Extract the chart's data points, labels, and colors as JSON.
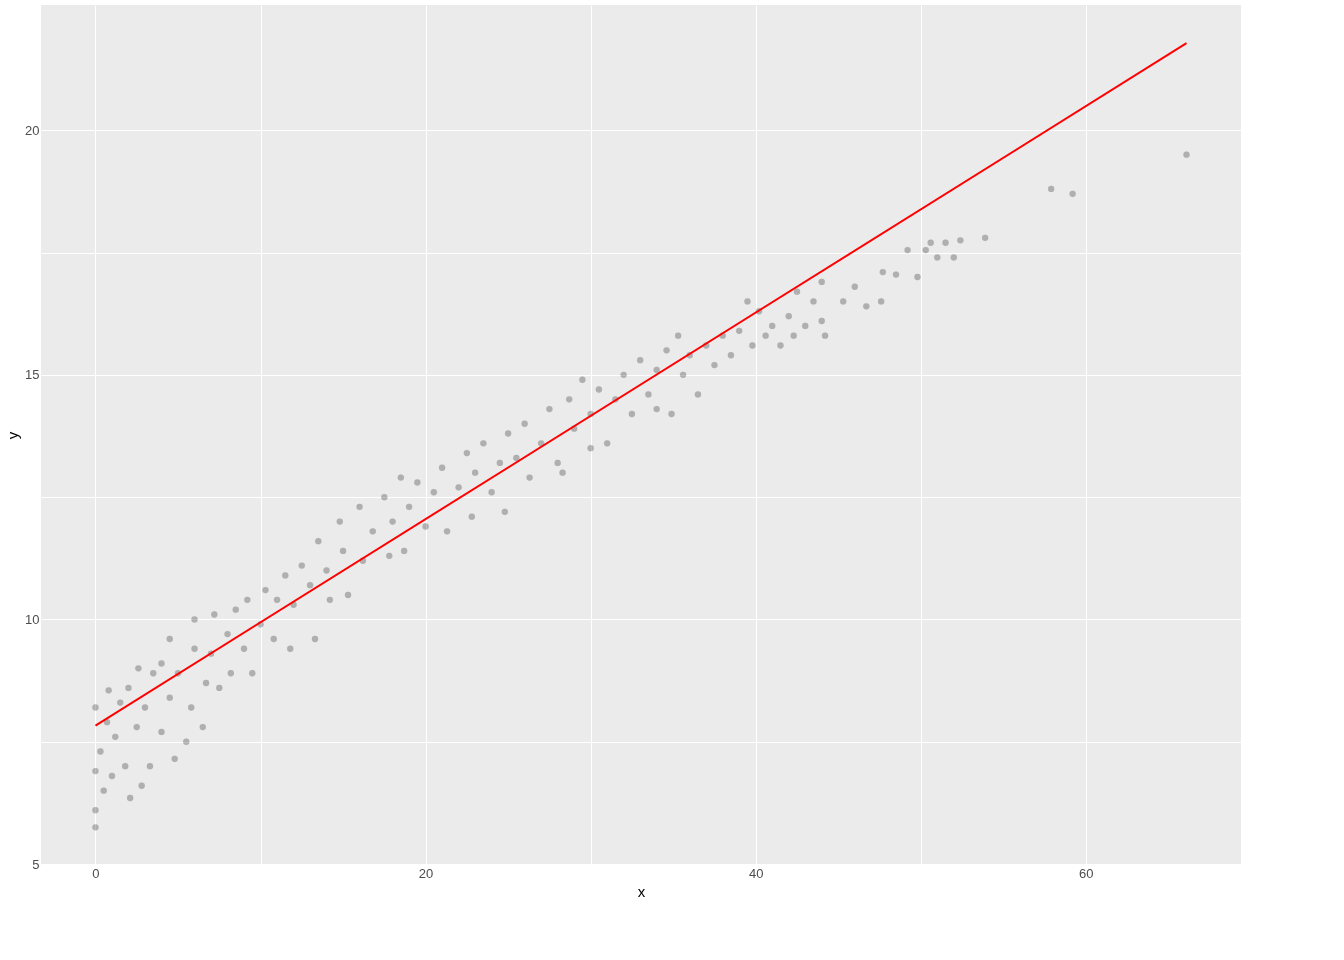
{
  "chart_data": {
    "type": "scatter",
    "xlabel": "x",
    "ylabel": "y",
    "xlim": [
      -3.3,
      69.4
    ],
    "ylim": [
      4.98,
      22.56
    ],
    "xticks": [
      0,
      {
        "value": 10,
        "label": null
      },
      20,
      {
        "value": 30,
        "label": null
      },
      40,
      {
        "value": 50,
        "label": null
      },
      60
    ],
    "yticks": [
      5,
      {
        "value": 7.5,
        "label": null
      },
      10,
      {
        "value": 12.5,
        "label": null
      },
      15,
      {
        "value": 17.5,
        "label": null
      },
      20
    ],
    "grid": true,
    "series": [
      {
        "type": "scatter",
        "color": "#000000",
        "marker": "circle",
        "x": [
          0,
          0,
          0,
          0,
          0.3,
          0.5,
          0.7,
          0.8,
          1,
          1.2,
          1.5,
          1.8,
          2,
          2.1,
          2.5,
          2.6,
          2.8,
          3,
          3.3,
          3.5,
          4,
          4,
          4.5,
          4.8,
          4.5,
          5,
          5.5,
          5.8,
          6,
          6,
          6.5,
          6.7,
          7,
          7.2,
          7.5,
          8,
          8.2,
          8.5,
          9,
          9.2,
          9.5,
          10,
          10.3,
          10.8,
          11,
          11.5,
          11.8,
          12,
          12.5,
          13,
          13.3,
          13.5,
          14,
          14.2,
          14.8,
          15,
          15.3,
          16,
          16.2,
          16.8,
          17.5,
          17.8,
          18,
          18.5,
          18.7,
          19,
          19.5,
          20,
          20.5,
          21,
          21.3,
          22,
          22.5,
          22.8,
          23,
          23.5,
          24,
          24.5,
          24.8,
          25,
          25.5,
          26,
          26.3,
          27,
          27.5,
          28,
          28.3,
          28.7,
          29,
          29.5,
          30,
          30,
          30.5,
          31,
          31.5,
          32,
          32.5,
          33,
          33.5,
          34,
          34,
          34.6,
          34.9,
          35.3,
          35.6,
          36,
          36.5,
          37,
          37.5,
          38,
          38.5,
          39,
          39.5,
          39.8,
          40.2,
          40.6,
          41,
          41.5,
          42,
          42.3,
          42.5,
          43,
          43.5,
          44,
          44.2,
          44,
          45.3,
          46,
          46.7,
          47.6,
          47.7,
          48.5,
          49.2,
          49.8,
          50.3,
          50.6,
          51,
          51.5,
          52,
          52.4,
          53.9,
          57.9,
          59.2,
          66.1
        ],
        "values": [
          5.75,
          6.1,
          6.9,
          8.2,
          7.3,
          6.5,
          7.9,
          8.55,
          6.8,
          7.6,
          8.3,
          7.0,
          8.6,
          6.35,
          7.8,
          9.0,
          6.6,
          8.2,
          7.0,
          8.9,
          7.7,
          9.1,
          8.4,
          7.15,
          9.6,
          8.9,
          7.5,
          8.2,
          9.4,
          10.0,
          7.8,
          8.7,
          9.3,
          10.1,
          8.6,
          9.7,
          8.9,
          10.2,
          9.4,
          10.4,
          8.9,
          9.9,
          10.6,
          9.6,
          10.4,
          10.9,
          9.4,
          10.3,
          11.1,
          10.7,
          9.6,
          11.6,
          11.0,
          10.4,
          12.0,
          11.4,
          10.5,
          12.3,
          11.2,
          11.8,
          12.5,
          11.3,
          12.0,
          12.9,
          11.4,
          12.3,
          12.8,
          11.9,
          12.6,
          13.1,
          11.8,
          12.7,
          13.4,
          12.1,
          13.0,
          13.6,
          12.6,
          13.2,
          12.2,
          13.8,
          13.3,
          14.0,
          12.9,
          13.6,
          14.3,
          13.2,
          13.0,
          14.5,
          13.9,
          14.9,
          14.2,
          13.5,
          14.7,
          13.6,
          14.5,
          15.0,
          14.2,
          15.3,
          14.6,
          15.1,
          14.3,
          15.5,
          14.2,
          15.8,
          15.0,
          15.4,
          14.6,
          15.6,
          15.2,
          15.8,
          15.4,
          15.9,
          16.5,
          15.6,
          16.3,
          15.8,
          16.0,
          15.6,
          16.2,
          15.8,
          16.7,
          16.0,
          16.5,
          16.1,
          15.8,
          16.9,
          16.5,
          16.8,
          16.4,
          16.5,
          17.1,
          17.05,
          17.55,
          17.0,
          17.55,
          17.7,
          17.4,
          17.7,
          17.4,
          17.75,
          17.8,
          18.8,
          18.7,
          19.5
        ]
      },
      {
        "type": "line",
        "color": "#ff0000",
        "x": [
          0,
          66.1
        ],
        "values": [
          7.83,
          21.78
        ]
      }
    ]
  }
}
